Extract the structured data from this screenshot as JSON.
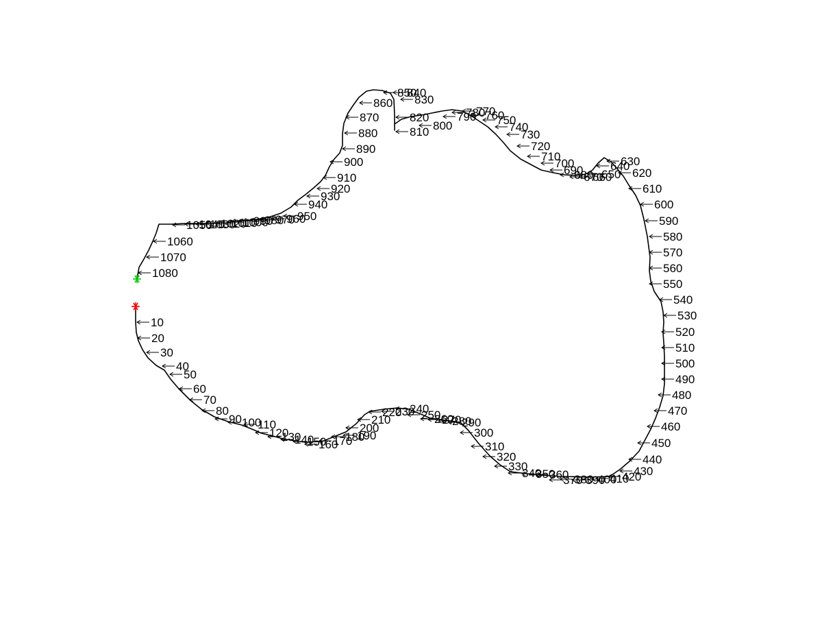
{
  "colors": {
    "background": "#ffffff",
    "contour": "#000000",
    "start_marker": "#ff0000",
    "end_marker": "#00cc00"
  },
  "markers": {
    "start": {
      "symbol": "asterisk",
      "color": "#ff0000"
    },
    "end": {
      "symbol": "asterisk",
      "color": "#00cc00"
    }
  },
  "labels": [
    "10",
    "20",
    "30",
    "40",
    "50",
    "60",
    "70",
    "80",
    "90",
    "100",
    "110",
    "120",
    "130",
    "140",
    "150",
    "160",
    "170",
    "180",
    "190",
    "200",
    "210",
    "220",
    "230",
    "240",
    "250",
    "260",
    "270",
    "280",
    "290",
    "300",
    "310",
    "320",
    "330",
    "340",
    "350",
    "360",
    "370",
    "380",
    "390",
    "400",
    "410",
    "420",
    "430",
    "440",
    "450",
    "460",
    "470",
    "480",
    "490",
    "500",
    "510",
    "520",
    "530",
    "540",
    "550",
    "560",
    "570",
    "580",
    "590",
    "600",
    "610",
    "620",
    "630",
    "640",
    "650",
    "660",
    "670",
    "680",
    "690",
    "700",
    "710",
    "720",
    "730",
    "740",
    "750",
    "760",
    "770",
    "780",
    "790",
    "800",
    "810",
    "820",
    "830",
    "840",
    "850",
    "860",
    "870",
    "880",
    "890",
    "900",
    "910",
    "920",
    "930",
    "940",
    "950",
    "960",
    "970",
    "980",
    "990",
    "1000",
    "1010",
    "1020",
    "1030",
    "1040",
    "1050",
    "1060",
    "1070",
    "1080"
  ]
}
